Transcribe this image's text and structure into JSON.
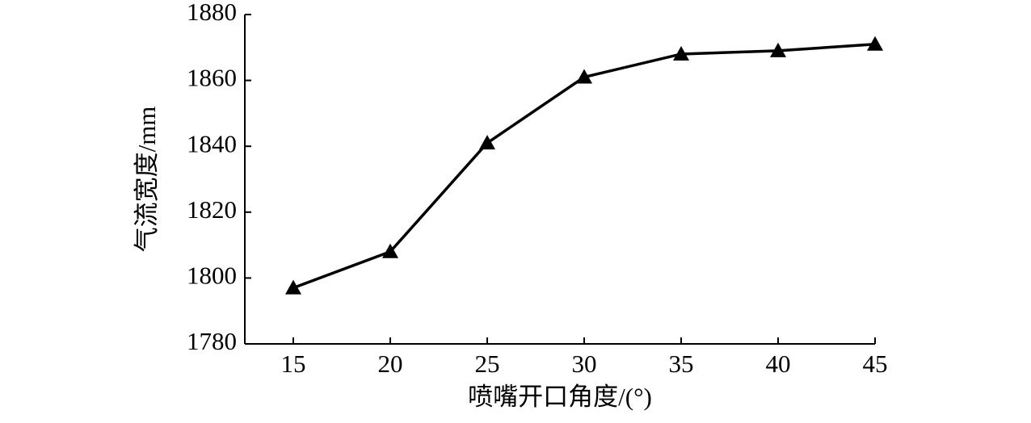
{
  "chart_data": {
    "type": "line",
    "x_label": "喷嘴开口角度/(°)",
    "y_label": "气流宽度/mm",
    "x": [
      15,
      20,
      25,
      30,
      35,
      40,
      45
    ],
    "series": [
      {
        "color": "#000000",
        "values": [
          1797,
          1808,
          1841,
          1861,
          1868,
          1869,
          1871
        ]
      }
    ],
    "xlim": [
      12.5,
      45
    ],
    "xticks": [
      15,
      20,
      25,
      30,
      35,
      40,
      45
    ],
    "ylim": [
      1780,
      1880
    ],
    "yticks": [
      1780,
      1800,
      1820,
      1840,
      1860,
      1880
    ],
    "grid": false
  }
}
